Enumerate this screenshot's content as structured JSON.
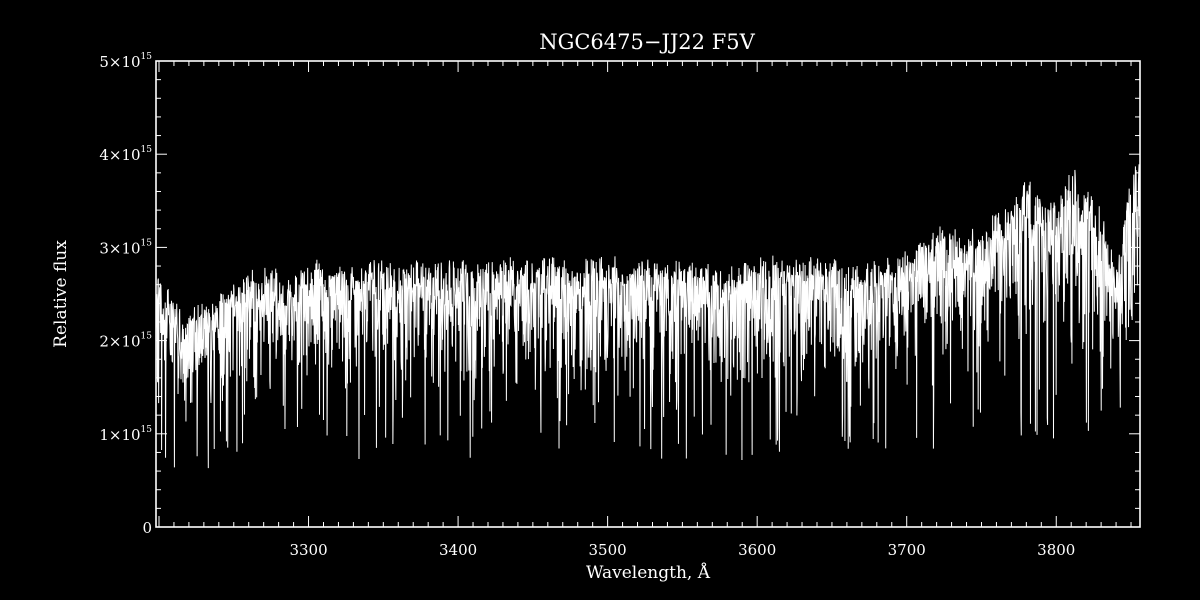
{
  "chart_data": {
    "type": "line",
    "title": "NGC6475−JJ22  F5V",
    "xlabel": "Wavelength, Å",
    "ylabel": "Relative flux",
    "xlim": [
      3198,
      3856
    ],
    "ylim": [
      0,
      5000000000000000.0
    ],
    "x_ticks": [
      3300,
      3400,
      3500,
      3600,
      3700,
      3800
    ],
    "y_ticks": [
      {
        "value": 0,
        "mant": "0",
        "exp": ""
      },
      {
        "value": 1000000000000000.0,
        "mant": "1×10",
        "exp": "15"
      },
      {
        "value": 2000000000000000.0,
        "mant": "2×10",
        "exp": "15"
      },
      {
        "value": 3000000000000000.0,
        "mant": "3×10",
        "exp": "15"
      },
      {
        "value": 4000000000000000.0,
        "mant": "4×10",
        "exp": "15"
      },
      {
        "value": 5000000000000000.0,
        "mant": "5×10",
        "exp": "15"
      }
    ],
    "grid": false,
    "colors": {
      "background": "#000000",
      "line": "#ffffff",
      "axes": "#ffffff"
    },
    "series": [
      {
        "x": [
          3198,
          3215,
          3230,
          3245,
          3260,
          3275,
          3290,
          3300,
          3320,
          3340,
          3360,
          3380,
          3400,
          3420,
          3440,
          3460,
          3480,
          3500,
          3520,
          3540,
          3560,
          3580,
          3600,
          3620,
          3640,
          3660,
          3680,
          3700,
          3710,
          3720,
          3730,
          3740,
          3750,
          3760,
          3770,
          3780,
          3790,
          3800,
          3810,
          3820,
          3830,
          3840,
          3850,
          3856
        ],
        "y": [
          2300000000000000.0,
          1900000000000000.0,
          2000000000000000.0,
          2100000000000000.0,
          2300000000000000.0,
          2300000000000000.0,
          2200000000000000.0,
          2400000000000000.0,
          2300000000000000.0,
          2400000000000000.0,
          2350000000000000.0,
          2400000000000000.0,
          2400000000000000.0,
          2350000000000000.0,
          2400000000000000.0,
          2400000000000000.0,
          2350000000000000.0,
          2400000000000000.0,
          2400000000000000.0,
          2350000000000000.0,
          2400000000000000.0,
          2300000000000000.0,
          2400000000000000.0,
          2400000000000000.0,
          2400000000000000.0,
          2350000000000000.0,
          2350000000000000.0,
          2500000000000000.0,
          2600000000000000.0,
          2700000000000000.0,
          2700000000000000.0,
          2600000000000000.0,
          2700000000000000.0,
          2800000000000000.0,
          2900000000000000.0,
          3100000000000000.0,
          3000000000000000.0,
          2900000000000000.0,
          3300000000000000.0,
          3100000000000000.0,
          2800000000000000.0,
          2300000000000000.0,
          3200000000000000.0,
          3400000000000000.0
        ]
      }
    ]
  }
}
